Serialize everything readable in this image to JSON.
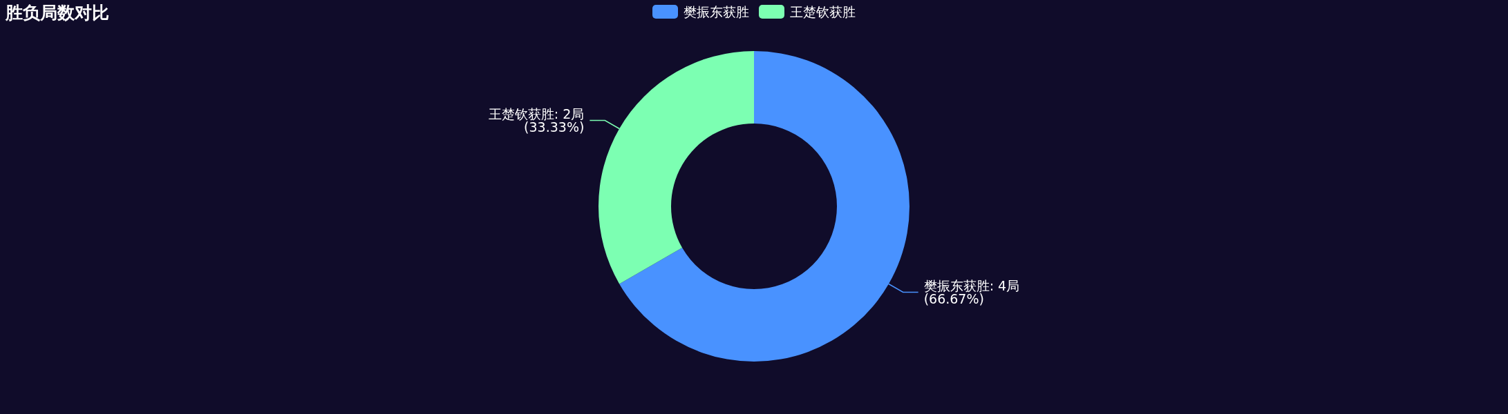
{
  "chart_data": {
    "type": "donut",
    "title": "胜负局数对比",
    "categories": [
      "樊振东获胜",
      "王楚钦获胜"
    ],
    "values": [
      4,
      2
    ],
    "colors": [
      "#4992ff",
      "#7cffb2"
    ],
    "value_labels": [
      "樊振东获胜: 4局\n(66.67%)",
      "王楚钦获胜: 2局\n(33.33%)"
    ],
    "legend": "top"
  }
}
